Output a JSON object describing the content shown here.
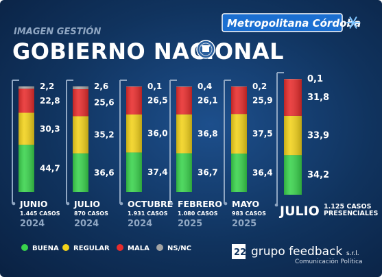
{
  "header": {
    "subtitle": "IMAGEN GESTIÓN",
    "title": "GOBIERNO NACIONAL",
    "brand": "Metropolitana Córdoba"
  },
  "colors": {
    "BUENA": "#39d34c",
    "REGULAR": "#f2d21a",
    "MALA": "#e82c2c",
    "NS/NC": "#a3a3a3"
  },
  "chart_data": {
    "type": "bar",
    "stacked": true,
    "normalized_percent": true,
    "categories": [
      {
        "month": "JUNIO",
        "cases": "1.445 CASOS",
        "year": "2024"
      },
      {
        "month": "JULIO",
        "cases": "870 CASOS",
        "year": "2024"
      },
      {
        "month": "OCTUBRE",
        "cases": "1.931 CASOS",
        "year": "2024"
      },
      {
        "month": "FEBRERO",
        "cases": "1.080 CASOS",
        "year": "2025"
      },
      {
        "month": "MAYO",
        "cases": "983 CASOS",
        "year": "2025"
      },
      {
        "month": "JULIO",
        "cases": "1.125 CASOS PRESENCIALES",
        "year": ""
      }
    ],
    "series": [
      {
        "name": "BUENA",
        "values": [
          "44,7",
          "36,6",
          "37,4",
          "36,7",
          "36,4",
          "34,2"
        ]
      },
      {
        "name": "REGULAR",
        "values": [
          "30,3",
          "35,2",
          "36,0",
          "36,8",
          "37,5",
          "33,9"
        ]
      },
      {
        "name": "MALA",
        "values": [
          "22,8",
          "25,6",
          "26,5",
          "26,1",
          "25,9",
          "31,8"
        ]
      },
      {
        "name": "NS/NC",
        "values": [
          "2,2",
          "2,6",
          "0,1",
          "0,4",
          "0,2",
          "0,1"
        ]
      }
    ],
    "legend": {
      "placement": "bottom-left",
      "items": [
        "BUENA",
        "REGULAR",
        "MALA",
        "NS/NC"
      ]
    }
  },
  "footer": {
    "logo_number": "22",
    "logo_main": "grupo feedback",
    "logo_srl": "s.r.l.",
    "logo_sub": "Comunicación Política"
  }
}
